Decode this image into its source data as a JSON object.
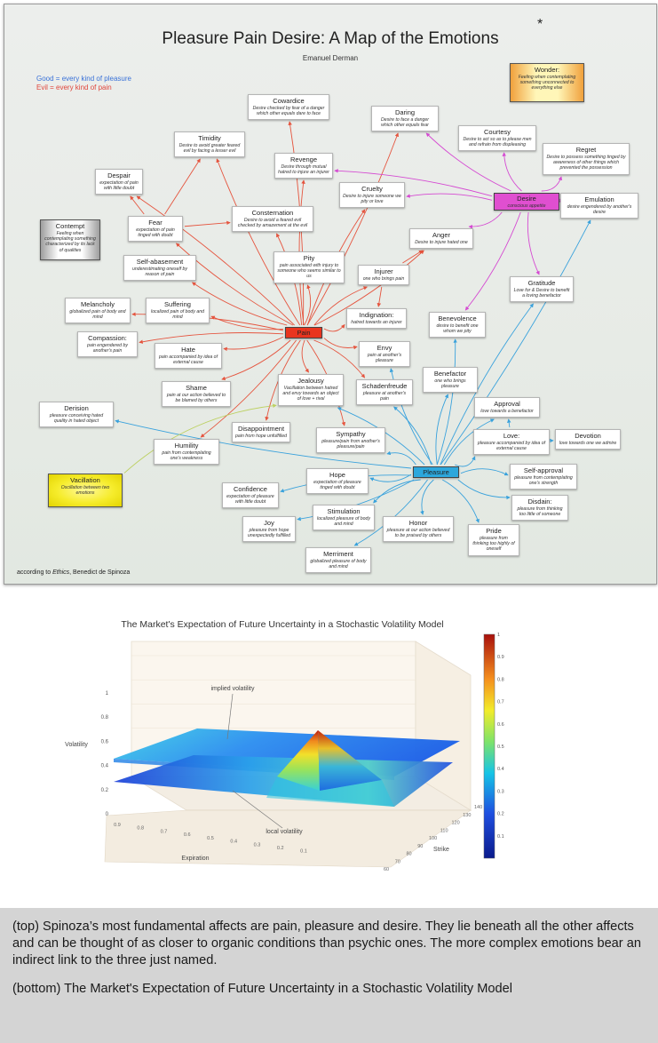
{
  "emotion_map": {
    "title": "Pleasure Pain Desire: A Map of the Emotions",
    "title_star": "*",
    "author": "Emanuel Derman",
    "legend": {
      "good": "Good = every kind of pleasure",
      "evil": "Evil  = every kind of pain",
      "good_color": "#3a72d8",
      "evil_color": "#e0463c"
    },
    "source_prefix": "according to ",
    "source_work": "Ethics",
    "source_suffix": ", Benedict de Spinoza",
    "link_colors": {
      "pain": "#e5543e",
      "pleasure": "#3aa2dc",
      "desire": "#d54ad2",
      "vacillation": "#bcd060"
    },
    "nodes": {
      "pain": {
        "title": "Pain"
      },
      "pleasure": {
        "title": "Pleasure"
      },
      "desire": {
        "title": "Desire",
        "desc": "conscious appetite"
      },
      "wonder": {
        "title": "Wonder:",
        "desc": "Feeling when contemplating something unconnected to everything else"
      },
      "contempt": {
        "title": "Contempt",
        "desc": "Feeling when contemplating something characterized by its lack of qualities"
      },
      "vacillation": {
        "title": "Vacillation",
        "desc": "Oscillation between two emotions"
      },
      "cowardice": {
        "title": "Cowardice",
        "desc": "Desire checked by fear of a danger which other equals dare to face"
      },
      "daring": {
        "title": "Daring",
        "desc": "Desire to face a danger which other equals fear"
      },
      "timidity": {
        "title": "Timidity",
        "desc": "Desire to avoid greater feared evil by facing a lesser evil"
      },
      "courtesy": {
        "title": "Courtesy",
        "desc": "Desire to act so as to please men and refrain from displeasing"
      },
      "regret": {
        "title": "Regret",
        "desc": "Desire to possess something tinged by awareness of other things which prevented the possession"
      },
      "revenge": {
        "title": "Revenge",
        "desc": "Desire through mutual hatred to injure an injurer"
      },
      "despair": {
        "title": "Despair",
        "desc": "expectation of pain with little doubt"
      },
      "cruelty": {
        "title": "Cruelty",
        "desc": "Desire to injure someone we pity or love"
      },
      "emulation": {
        "title": "Emulation",
        "desc": "desire engendered by another's desire"
      },
      "fear": {
        "title": "Fear",
        "desc": "expectation of pain tinged with doubt"
      },
      "consternation": {
        "title": "Consternation",
        "desc": "Desire to avoid a feared evil checked by amazement at the evil"
      },
      "anger": {
        "title": "Anger",
        "desc": "Desire to injure hated one"
      },
      "self_abasement": {
        "title": "Self-abasement",
        "desc": "underestimating oneself by reason of pain"
      },
      "pity": {
        "title": "Pity",
        "desc": "pain associated with injury to someone who seems similar to us"
      },
      "injurer": {
        "title": "Injurer",
        "desc": "one who brings pain"
      },
      "gratitude": {
        "title": "Gratitude",
        "desc": "Love for & Desire to benefit a loving benefactor"
      },
      "melancholy": {
        "title": "Melancholy",
        "desc": "globalized pain of body and mind"
      },
      "suffering": {
        "title": "Suffering",
        "desc": "localized pain of body and mind"
      },
      "indignation": {
        "title": "Indignation:",
        "desc": "hatred towards an injurer"
      },
      "benevolence": {
        "title": "Benevolence",
        "desc": "desire to benefit one whom we pity"
      },
      "compassion": {
        "title": "Compassion:",
        "desc": "pain engendered by another's pain"
      },
      "hate": {
        "title": "Hate",
        "desc": "pain accompanied by idea of external cause"
      },
      "envy": {
        "title": "Envy",
        "desc": "pain at another's pleasure"
      },
      "benefactor": {
        "title": "Benefactor",
        "desc": "one who brings pleasure"
      },
      "shame": {
        "title": "Shame",
        "desc": "pain at our action believed to be blamed by others"
      },
      "jealousy": {
        "title": "Jealousy",
        "desc": "Vacillation between hatred and envy towards an object of love + rival"
      },
      "schadenfreude": {
        "title": "Schadenfreude",
        "desc": "pleasure at another's pain"
      },
      "approval": {
        "title": "Approval",
        "desc": "love towards a benefactor"
      },
      "derision": {
        "title": "Derision",
        "desc": "pleasure conceiving hated quality in hated object"
      },
      "disappointment": {
        "title": "Disappointment",
        "desc": "pain from hope unfulfilled"
      },
      "sympathy": {
        "title": "Sympathy",
        "desc": "pleasure/pain from another's pleasure/pain"
      },
      "love": {
        "title": "Love:",
        "desc": "pleasure accompanied by idea of external cause"
      },
      "devotion": {
        "title": "Devotion",
        "desc": "love towards one we admire"
      },
      "humility": {
        "title": "Humility",
        "desc": "pain from contemplating one's weakness"
      },
      "self_approval": {
        "title": "Self-approval",
        "desc": "pleasure from contemplating one's strength"
      },
      "hope": {
        "title": "Hope",
        "desc": "expectation of pleasure tinged with doubt"
      },
      "confidence": {
        "title": "Confidence",
        "desc": "expectation of pleasure with little doubt"
      },
      "disdain": {
        "title": "Disdain:",
        "desc": "pleasure from thinking too little of someone"
      },
      "stimulation": {
        "title": "Stimulation",
        "desc": "localized pleasure of body and mind"
      },
      "joy": {
        "title": "Joy",
        "desc": "pleasure from hope unexpectedly fulfilled"
      },
      "honor": {
        "title": "Honor",
        "desc": "pleasure at our action believed to be praised by others"
      },
      "pride": {
        "title": "Pride",
        "desc": "pleasure from thinking too highly of oneself"
      },
      "merriment": {
        "title": "Merriment",
        "desc": "globalized pleasure of body and mind"
      }
    }
  },
  "chart_data": {
    "type": "surface",
    "title": "The Market's Expectation of Future Uncertainty in a Stochastic Volatility Model",
    "zlabel": "Volatility",
    "xlabel": "Expiration",
    "ylabel": "Strike",
    "expiration_ticks": [
      "0.9",
      "0.8",
      "0.7",
      "0.6",
      "0.5",
      "0.4",
      "0.3",
      "0.2",
      "0.1"
    ],
    "strike_ticks": [
      "60",
      "70",
      "80",
      "90",
      "100",
      "110",
      "120",
      "130",
      "140"
    ],
    "volatility_ticks": [
      "0",
      "0.2",
      "0.4",
      "0.6",
      "0.8",
      "1"
    ],
    "colorbar_ticks": [
      "0.1",
      "0.2",
      "0.3",
      "0.4",
      "0.5",
      "0.6",
      "0.7",
      "0.8",
      "0.9",
      "1"
    ],
    "zlim": [
      0,
      1
    ],
    "series": [
      {
        "name": "implied volatility",
        "approx_range": [
          0.42,
          0.55
        ]
      },
      {
        "name": "local volatility",
        "approx_range": [
          0.25,
          0.7
        ]
      }
    ]
  },
  "caption": {
    "top": "(top) Spinoza’s most fundamental affects are pain, pleasure and desire. They lie beneath all the other affects and can be thought of as closer to organic conditions than psychic ones. The more complex emotions bear an indirect link to the three just named.",
    "bottom": "(bottom) The Market's Expectation of Future Uncertainty in a Stochastic Volatility Model"
  }
}
